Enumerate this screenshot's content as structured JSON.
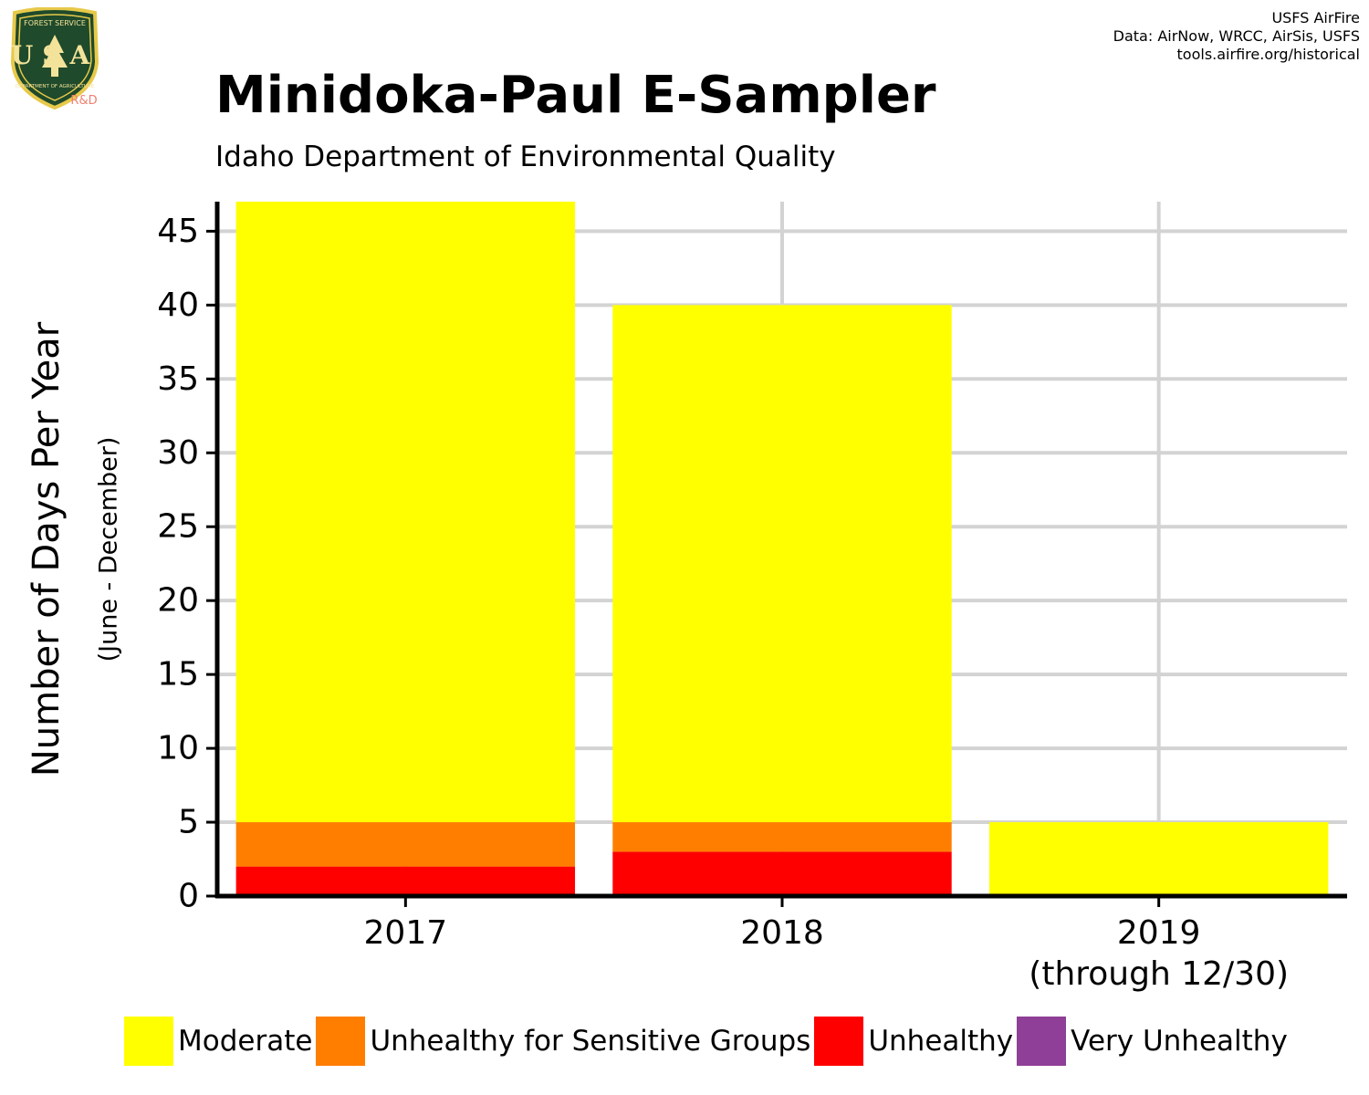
{
  "logo": {
    "top_text": "FOREST SERVICE",
    "letters": "USA",
    "bottom_text": "DEPARTMENT OF AGRICULTURE",
    "tag": "R&D"
  },
  "credits": [
    "USFS AirFire",
    "Data: AirNow, WRCC, AirSis, USFS",
    "tools.airfire.org/historical"
  ],
  "title": "Minidoka-Paul E-Sampler",
  "subtitle": "Idaho Department of Environmental Quality",
  "colors": {
    "moderate": "#FFFF00",
    "usg": "#FF7E00",
    "unhealthy": "#FF0000",
    "very_unhealthy": "#8F3F97",
    "grid": "#D3D3D3",
    "axis": "#000000"
  },
  "chart_data": {
    "type": "bar",
    "stacked": true,
    "categories": [
      "2017",
      "2018",
      "2019\n(through 12/30)"
    ],
    "series": [
      {
        "name": "Unhealthy",
        "color": "#FF0000",
        "values": [
          2,
          3,
          0
        ]
      },
      {
        "name": "Unhealthy for Sensitive Groups",
        "color": "#FF7E00",
        "values": [
          3,
          2,
          0
        ]
      },
      {
        "name": "Moderate",
        "color": "#FFFF00",
        "values": [
          42,
          35,
          5
        ]
      },
      {
        "name": "Very Unhealthy",
        "color": "#8F3F97",
        "values": [
          0,
          0,
          0
        ]
      }
    ],
    "ylabel": "Number of Days Per Year",
    "ylabel_sub": "(June - December)",
    "ylim": [
      0,
      47
    ],
    "yticks": [
      0,
      5,
      10,
      15,
      20,
      25,
      30,
      35,
      40,
      45
    ],
    "grid": true,
    "legend_position": "bottom"
  },
  "legend": [
    {
      "label": "Moderate",
      "color": "#FFFF00"
    },
    {
      "label": "Unhealthy for Sensitive Groups",
      "color": "#FF7E00"
    },
    {
      "label": "Unhealthy",
      "color": "#FF0000"
    },
    {
      "label": "Very Unhealthy",
      "color": "#8F3F97"
    }
  ]
}
